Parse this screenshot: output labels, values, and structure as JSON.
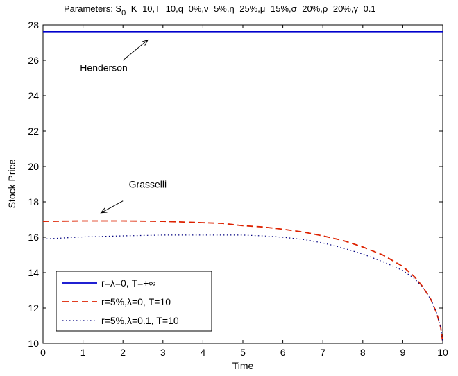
{
  "chart_data": {
    "type": "line",
    "title": {
      "prefix": "Parameters: S",
      "sub": "0",
      "suffix": "=K=10,T=10,q=0%,ν=5%,η=25%,μ=15%,σ=20%,ρ=20%,γ=0.1"
    },
    "xlabel": "Time",
    "ylabel": "Stock Price",
    "xlim": [
      0,
      10
    ],
    "ylim": [
      10,
      28
    ],
    "xticks": [
      0,
      1,
      2,
      3,
      4,
      5,
      6,
      7,
      8,
      9,
      10
    ],
    "yticks": [
      10,
      12,
      14,
      16,
      18,
      20,
      22,
      24,
      26,
      28
    ],
    "grid": false,
    "legend_position": "lower-left",
    "series": [
      {
        "name": "r=λ=0, T=+∞",
        "color": "#0000cc",
        "style": "solid",
        "x": [
          0,
          10
        ],
        "y": [
          27.62,
          27.62
        ]
      },
      {
        "name": "r=5%,λ=0, T=10",
        "color": "#dd2200",
        "style": "dashed",
        "x": [
          0,
          1,
          2,
          3,
          4,
          4.5,
          5,
          5.5,
          6,
          6.5,
          7,
          7.5,
          8,
          8.5,
          9,
          9.3,
          9.5,
          9.7,
          9.85,
          9.95,
          10
        ],
        "y": [
          16.9,
          16.92,
          16.92,
          16.9,
          16.82,
          16.78,
          16.65,
          16.58,
          16.45,
          16.3,
          16.08,
          15.82,
          15.45,
          15.0,
          14.35,
          13.75,
          13.2,
          12.5,
          11.7,
          10.9,
          10.05
        ]
      },
      {
        "name": "r=5%,λ=0.1, T=10",
        "color": "#000080",
        "style": "dotted",
        "x": [
          0,
          1,
          2,
          3,
          4,
          5,
          5.5,
          6,
          6.5,
          7,
          7.5,
          8,
          8.5,
          9,
          9.3,
          9.5,
          9.7,
          9.85,
          9.95,
          10
        ],
        "y": [
          15.9,
          16.02,
          16.08,
          16.12,
          16.12,
          16.12,
          16.08,
          16.0,
          15.88,
          15.68,
          15.4,
          15.05,
          14.62,
          14.12,
          13.65,
          13.15,
          12.5,
          11.7,
          10.9,
          10.05
        ]
      }
    ],
    "annotations": [
      {
        "text": "Henderson",
        "text_x": 1.52,
        "text_y": 25.4,
        "arrow_from_x": 2.0,
        "arrow_from_y": 26.0,
        "arrow_to_x": 2.62,
        "arrow_to_y": 27.15
      },
      {
        "text": "Grasselli",
        "text_x": 2.62,
        "text_y": 18.8,
        "arrow_from_x": 2.0,
        "arrow_from_y": 18.05,
        "arrow_to_x": 1.45,
        "arrow_to_y": 17.38
      }
    ]
  }
}
